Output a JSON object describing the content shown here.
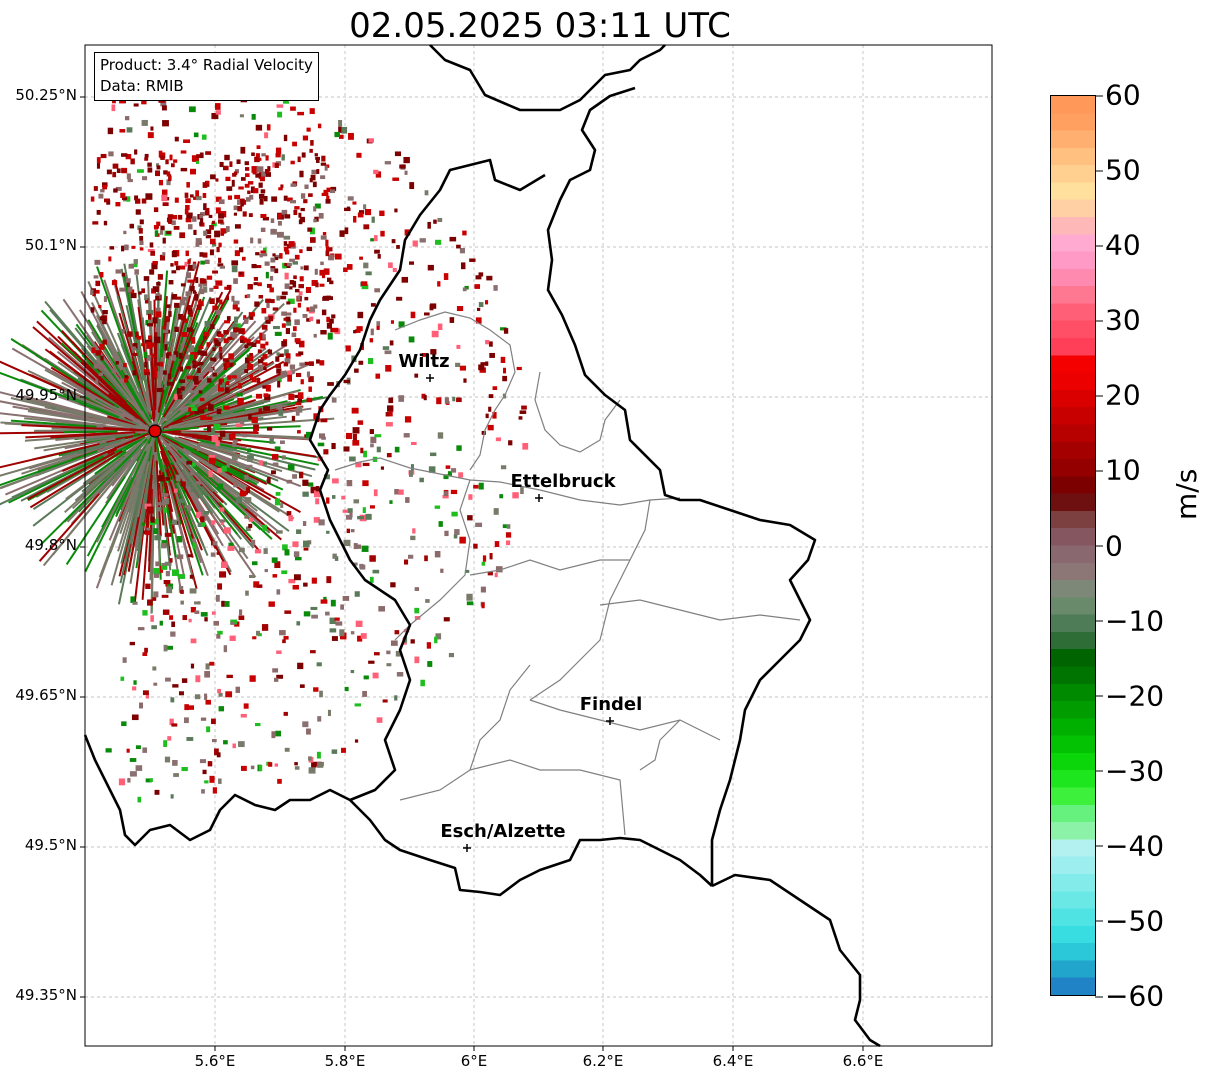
{
  "title": "02.05.2025 03:11 UTC",
  "info": {
    "product": "Product: 3.4° Radial Velocity",
    "data": "Data: RMIB"
  },
  "lat_ticks": [
    "50.25°N",
    "50.1°N",
    "49.95°N",
    "49.8°N",
    "49.65°N",
    "49.5°N",
    "49.35°N"
  ],
  "lon_ticks": [
    "5.6°E",
    "5.8°E",
    "6°E",
    "6.2°E",
    "6.4°E",
    "6.6°E"
  ],
  "cities": [
    {
      "name": "Wiltz",
      "lon": 5.93,
      "lat": 49.966
    },
    {
      "name": "Ettelbruck",
      "lon": 6.1,
      "lat": 49.847
    },
    {
      "name": "Findel",
      "lon": 6.21,
      "lat": 49.627
    },
    {
      "name": "Esch/Alzette",
      "lon": 5.99,
      "lat": 49.498
    }
  ],
  "radar": {
    "lon": 5.505,
    "lat": 49.915,
    "color": "#e00000"
  },
  "map_extent": {
    "lon_min": 5.4,
    "lon_max": 6.8,
    "lat_min": 49.3,
    "lat_max": 50.3
  },
  "colorbar": {
    "label": "m/s",
    "min": -60,
    "max": 60,
    "ticks": [
      "60",
      "50",
      "40",
      "30",
      "20",
      "10",
      "0",
      "−10",
      "−20",
      "−30",
      "−40",
      "−50",
      "−60"
    ],
    "colors": [
      "#2083c6",
      "#21a5cc",
      "#2ac8d8",
      "#37dde0",
      "#50e3e3",
      "#6ae8e6",
      "#83ebea",
      "#9cefee",
      "#b2f1f0",
      "#8cf2a8",
      "#66f07e",
      "#3cf03c",
      "#1ee61e",
      "#0ad60a",
      "#03c203",
      "#00b000",
      "#009c00",
      "#008a00",
      "#007400",
      "#006400",
      "#2e6d36",
      "#4d7c56",
      "#6a8a6c",
      "#7e8878",
      "#8c7676",
      "#896870",
      "#865660",
      "#7c4040",
      "#6e1010",
      "#7c0000",
      "#940000",
      "#a50000",
      "#b70000",
      "#c80000",
      "#da0000",
      "#ec0000",
      "#f40000",
      "#ff3e58",
      "#ff4f66",
      "#ff6077",
      "#ff7892",
      "#ff8ab0",
      "#ff9ac6",
      "#ffaad0",
      "#ffb8b8",
      "#ffd0a4",
      "#ffe09c",
      "#ffd090",
      "#ffc080",
      "#ffb070",
      "#ffa060",
      "#ff9858"
    ]
  }
}
